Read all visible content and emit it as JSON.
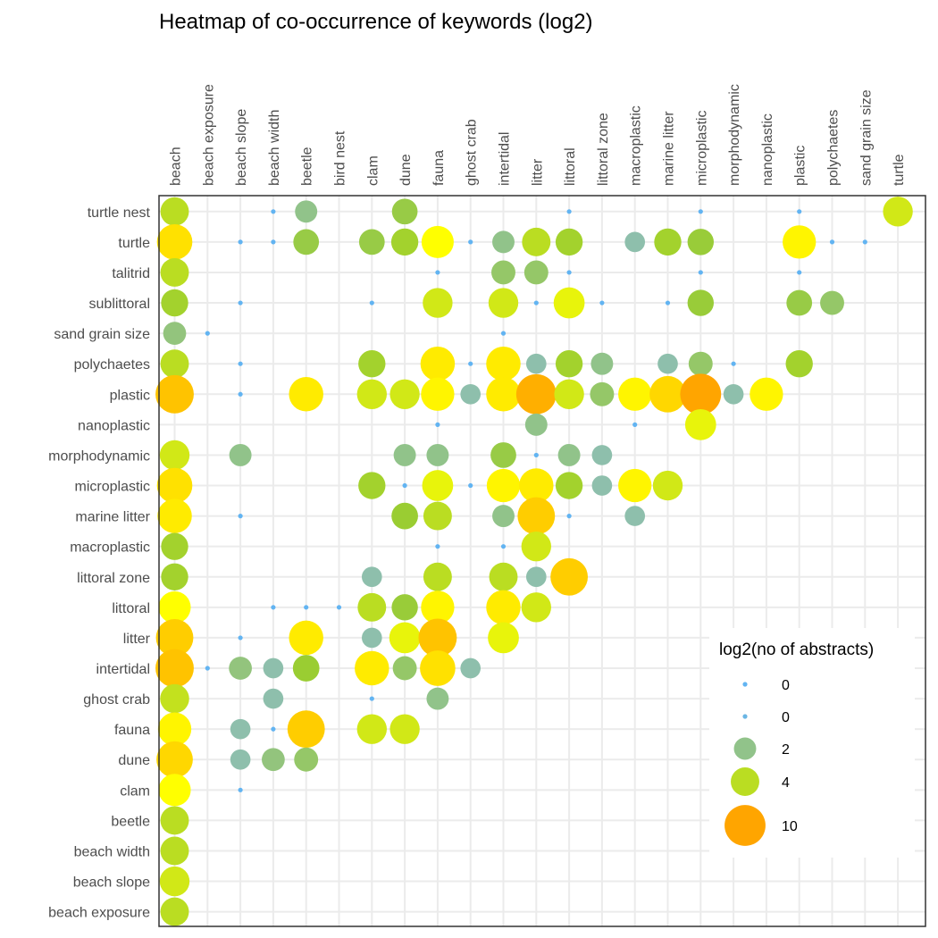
{
  "chart_data": {
    "type": "scatter",
    "title": "Heatmap of co-occurrence of keywords (log2)",
    "x_categories": [
      "beach",
      "beach exposure",
      "beach slope",
      "beach width",
      "beetle",
      "bird nest",
      "clam",
      "dune",
      "fauna",
      "ghost crab",
      "intertidal",
      "litter",
      "littoral",
      "littoral zone",
      "macroplastic",
      "marine litter",
      "microplastic",
      "morphodynamic",
      "nanoplastic",
      "plastic",
      "polychaetes",
      "sand grain size",
      "turtle"
    ],
    "y_categories": [
      "turtle nest",
      "turtle",
      "talitrid",
      "sublittoral",
      "sand grain size",
      "polychaetes",
      "plastic",
      "nanoplastic",
      "morphodynamic",
      "microplastic",
      "marine litter",
      "macroplastic",
      "littoral zone",
      "littoral",
      "litter",
      "intertidal",
      "ghost crab",
      "fauna",
      "dune",
      "clam",
      "beetle",
      "beach width",
      "beach slope",
      "beach exposure"
    ],
    "size_measure": "log2(no of abstracts)",
    "size_range": [
      0,
      11
    ],
    "color_low": "#62b4f2",
    "color_mid": "#8ebfac",
    "color_green": "#9acd32",
    "color_yellow": "#ffff00",
    "color_high": "#ffa500",
    "grid": true,
    "legend": {
      "title": "log2(no of abstracts)",
      "position": "bottom-right",
      "items": [
        {
          "label": "0",
          "value": 0
        },
        {
          "label": "0",
          "value": 0.3
        },
        {
          "label": "2",
          "value": 2
        },
        {
          "label": "4",
          "value": 4
        },
        {
          "label": "10",
          "value": 10
        }
      ]
    },
    "points": [
      [
        "turtle nest",
        "beach",
        4
      ],
      [
        "turtle nest",
        "beach width",
        0
      ],
      [
        "turtle nest",
        "beetle",
        2
      ],
      [
        "turtle nest",
        "dune",
        3
      ],
      [
        "turtle nest",
        "littoral",
        0
      ],
      [
        "turtle nest",
        "microplastic",
        0
      ],
      [
        "turtle nest",
        "plastic",
        0
      ],
      [
        "turtle nest",
        "turtle",
        4.5
      ],
      [
        "turtle",
        "beach",
        7
      ],
      [
        "turtle",
        "beach slope",
        0
      ],
      [
        "turtle",
        "beach width",
        0
      ],
      [
        "turtle",
        "beetle",
        3
      ],
      [
        "turtle",
        "clam",
        3
      ],
      [
        "turtle",
        "dune",
        3.5
      ],
      [
        "turtle",
        "fauna",
        5.5
      ],
      [
        "turtle",
        "ghost crab",
        0
      ],
      [
        "turtle",
        "intertidal",
        2
      ],
      [
        "turtle",
        "litter",
        4
      ],
      [
        "turtle",
        "littoral",
        3.5
      ],
      [
        "turtle",
        "macroplastic",
        1.5
      ],
      [
        "turtle",
        "marine litter",
        3.5
      ],
      [
        "turtle",
        "microplastic",
        3.2
      ],
      [
        "turtle",
        "plastic",
        6
      ],
      [
        "turtle",
        "polychaetes",
        0
      ],
      [
        "turtle",
        "sand grain size",
        0
      ],
      [
        "talitrid",
        "beach",
        4
      ],
      [
        "talitrid",
        "fauna",
        0
      ],
      [
        "talitrid",
        "intertidal",
        2.5
      ],
      [
        "talitrid",
        "litter",
        2.5
      ],
      [
        "talitrid",
        "littoral",
        0
      ],
      [
        "talitrid",
        "microplastic",
        0
      ],
      [
        "talitrid",
        "plastic",
        0
      ],
      [
        "sublittoral",
        "beach",
        3.5
      ],
      [
        "sublittoral",
        "beach slope",
        0
      ],
      [
        "sublittoral",
        "clam",
        0
      ],
      [
        "sublittoral",
        "fauna",
        4.5
      ],
      [
        "sublittoral",
        "intertidal",
        4.5
      ],
      [
        "sublittoral",
        "litter",
        0
      ],
      [
        "sublittoral",
        "littoral",
        5
      ],
      [
        "sublittoral",
        "littoral zone",
        0
      ],
      [
        "sublittoral",
        "marine litter",
        0
      ],
      [
        "sublittoral",
        "microplastic",
        3.2
      ],
      [
        "sublittoral",
        "plastic",
        3
      ],
      [
        "sublittoral",
        "polychaetes",
        2.5
      ],
      [
        "sand grain size",
        "beach",
        2.2
      ],
      [
        "sand grain size",
        "beach exposure",
        0
      ],
      [
        "sand grain size",
        "intertidal",
        0
      ],
      [
        "polychaetes",
        "beach",
        4
      ],
      [
        "polychaetes",
        "beach slope",
        0
      ],
      [
        "polychaetes",
        "clam",
        3.5
      ],
      [
        "polychaetes",
        "fauna",
        6.5
      ],
      [
        "polychaetes",
        "ghost crab",
        0
      ],
      [
        "polychaetes",
        "intertidal",
        6.5
      ],
      [
        "polychaetes",
        "litter",
        1.5
      ],
      [
        "polychaetes",
        "littoral",
        3.5
      ],
      [
        "polychaetes",
        "littoral zone",
        2
      ],
      [
        "polychaetes",
        "marine litter",
        1.5
      ],
      [
        "polychaetes",
        "microplastic",
        2.5
      ],
      [
        "polychaetes",
        "morphodynamic",
        0
      ],
      [
        "polychaetes",
        "plastic",
        3.5
      ],
      [
        "plastic",
        "beach",
        8.5
      ],
      [
        "plastic",
        "beach slope",
        0
      ],
      [
        "plastic",
        "beetle",
        6.5
      ],
      [
        "plastic",
        "clam",
        4.5
      ],
      [
        "plastic",
        "dune",
        4.5
      ],
      [
        "plastic",
        "fauna",
        6
      ],
      [
        "plastic",
        "ghost crab",
        1.5
      ],
      [
        "plastic",
        "intertidal",
        6.5
      ],
      [
        "plastic",
        "litter",
        9.5
      ],
      [
        "plastic",
        "littoral",
        4.5
      ],
      [
        "plastic",
        "littoral zone",
        2.5
      ],
      [
        "plastic",
        "macroplastic",
        6
      ],
      [
        "plastic",
        "marine litter",
        7.5
      ],
      [
        "plastic",
        "microplastic",
        10
      ],
      [
        "plastic",
        "morphodynamic",
        1.5
      ],
      [
        "plastic",
        "nanoplastic",
        6
      ],
      [
        "nanoplastic",
        "fauna",
        0
      ],
      [
        "nanoplastic",
        "litter",
        2
      ],
      [
        "nanoplastic",
        "macroplastic",
        0
      ],
      [
        "nanoplastic",
        "microplastic",
        5
      ],
      [
        "morphodynamic",
        "beach",
        4.5
      ],
      [
        "morphodynamic",
        "beach slope",
        2
      ],
      [
        "morphodynamic",
        "dune",
        2
      ],
      [
        "morphodynamic",
        "fauna",
        2
      ],
      [
        "morphodynamic",
        "intertidal",
        3
      ],
      [
        "morphodynamic",
        "litter",
        0
      ],
      [
        "morphodynamic",
        "littoral",
        2
      ],
      [
        "morphodynamic",
        "littoral zone",
        1.5
      ],
      [
        "microplastic",
        "beach",
        7
      ],
      [
        "microplastic",
        "clam",
        3.5
      ],
      [
        "microplastic",
        "dune",
        0
      ],
      [
        "microplastic",
        "fauna",
        5
      ],
      [
        "microplastic",
        "ghost crab",
        0
      ],
      [
        "microplastic",
        "intertidal",
        6
      ],
      [
        "microplastic",
        "litter",
        6.5
      ],
      [
        "microplastic",
        "littoral",
        3.5
      ],
      [
        "microplastic",
        "littoral zone",
        1.5
      ],
      [
        "microplastic",
        "macroplastic",
        6
      ],
      [
        "microplastic",
        "marine litter",
        4.5
      ],
      [
        "marine litter",
        "beach",
        6.5
      ],
      [
        "marine litter",
        "beach slope",
        0
      ],
      [
        "marine litter",
        "dune",
        3.3
      ],
      [
        "marine litter",
        "fauna",
        4
      ],
      [
        "marine litter",
        "intertidal",
        2
      ],
      [
        "marine litter",
        "litter",
        8
      ],
      [
        "marine litter",
        "littoral",
        0
      ],
      [
        "marine litter",
        "macroplastic",
        1.5
      ],
      [
        "macroplastic",
        "beach",
        3.5
      ],
      [
        "macroplastic",
        "fauna",
        0
      ],
      [
        "macroplastic",
        "intertidal",
        0
      ],
      [
        "macroplastic",
        "litter",
        4.5
      ],
      [
        "littoral zone",
        "beach",
        3.5
      ],
      [
        "littoral zone",
        "clam",
        1.5
      ],
      [
        "littoral zone",
        "fauna",
        4
      ],
      [
        "littoral zone",
        "intertidal",
        4
      ],
      [
        "littoral zone",
        "litter",
        1.5
      ],
      [
        "littoral zone",
        "littoral",
        8
      ],
      [
        "littoral",
        "beach",
        5.5
      ],
      [
        "littoral",
        "beach width",
        0
      ],
      [
        "littoral",
        "beetle",
        0
      ],
      [
        "littoral",
        "bird nest",
        0
      ],
      [
        "littoral",
        "clam",
        4
      ],
      [
        "littoral",
        "dune",
        3.2
      ],
      [
        "littoral",
        "fauna",
        6
      ],
      [
        "littoral",
        "intertidal",
        6.5
      ],
      [
        "littoral",
        "litter",
        4.5
      ],
      [
        "litter",
        "beach",
        8
      ],
      [
        "litter",
        "beach slope",
        0
      ],
      [
        "litter",
        "beetle",
        6.5
      ],
      [
        "litter",
        "clam",
        1.5
      ],
      [
        "litter",
        "dune",
        5
      ],
      [
        "litter",
        "fauna",
        8.5
      ],
      [
        "litter",
        "intertidal",
        5
      ],
      [
        "intertidal",
        "beach",
        8.5
      ],
      [
        "intertidal",
        "beach exposure",
        0
      ],
      [
        "intertidal",
        "beach slope",
        2.2
      ],
      [
        "intertidal",
        "beach width",
        1.5
      ],
      [
        "intertidal",
        "beetle",
        3.3
      ],
      [
        "intertidal",
        "clam",
        6.5
      ],
      [
        "intertidal",
        "dune",
        2.5
      ],
      [
        "intertidal",
        "fauna",
        7
      ],
      [
        "intertidal",
        "ghost crab",
        1.5
      ],
      [
        "ghost crab",
        "beach",
        4.2
      ],
      [
        "ghost crab",
        "beach width",
        1.5
      ],
      [
        "ghost crab",
        "clam",
        0
      ],
      [
        "ghost crab",
        "fauna",
        2
      ],
      [
        "fauna",
        "beach",
        6
      ],
      [
        "fauna",
        "beach slope",
        1.5
      ],
      [
        "fauna",
        "beach width",
        0
      ],
      [
        "fauna",
        "beetle",
        8
      ],
      [
        "fauna",
        "clam",
        4.5
      ],
      [
        "fauna",
        "dune",
        4.5
      ],
      [
        "dune",
        "beach",
        7.5
      ],
      [
        "dune",
        "beach slope",
        1.5
      ],
      [
        "dune",
        "beach width",
        2.2
      ],
      [
        "dune",
        "beetle",
        2.5
      ],
      [
        "clam",
        "beach",
        5.5
      ],
      [
        "clam",
        "beach slope",
        0
      ],
      [
        "beetle",
        "beach",
        4
      ],
      [
        "beach width",
        "beach",
        4
      ],
      [
        "beach slope",
        "beach",
        4.5
      ],
      [
        "beach exposure",
        "beach",
        4
      ]
    ]
  }
}
